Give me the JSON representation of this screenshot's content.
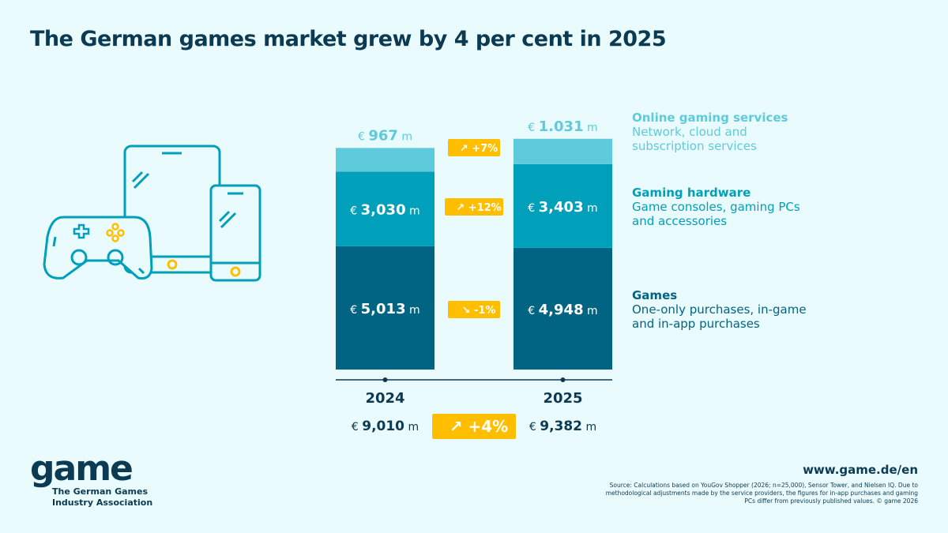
{
  "title": "The German games market grew by 4 per cent in 2025",
  "chart_data": {
    "type": "bar",
    "stacked": true,
    "categories": [
      "2024",
      "2025"
    ],
    "currency_prefix": "€",
    "unit": "m",
    "series": [
      {
        "name": "Games",
        "values": [
          5013,
          4948
        ],
        "labels": [
          "5,013",
          "4,948"
        ],
        "change": "-1%",
        "direction": "down",
        "color": "#006482"
      },
      {
        "name": "Gaming hardware",
        "values": [
          3030,
          3403
        ],
        "labels": [
          "3,030",
          "3,403"
        ],
        "change": "+12%",
        "direction": "up",
        "color": "#009fba"
      },
      {
        "name": "Online gaming services",
        "values": [
          967,
          1031
        ],
        "labels": [
          "967",
          "1.031"
        ],
        "change": "+7%",
        "direction": "up",
        "color": "#5ecbdc"
      }
    ],
    "totals": [
      "9,010",
      "9,382"
    ],
    "total_change": "+4%",
    "badge_color": "#ffbf00"
  },
  "legend": [
    {
      "title": "Online gaming services",
      "desc": [
        "Network, cloud and",
        "subscription services"
      ],
      "color": "#5ecbdc"
    },
    {
      "title": "Gaming hardware",
      "desc": [
        "Game consoles, gaming PCs",
        "and accessories"
      ],
      "color": "#009fba"
    },
    {
      "title": "Games",
      "desc": [
        "One-only purchases, in-game",
        "and in-app purchases"
      ],
      "color": "#006482"
    }
  ],
  "logo": {
    "word": "game",
    "sub": [
      "The German Games",
      "Industry Association"
    ]
  },
  "url": "www.game.de/en",
  "source": "Source: Calculations based on YouGov Shopper (2026; n=25,000), Sensor Tower, and Nielsen IQ. Due to methodological adjustments made by the service providers, the figures for in-app purchases and gaming PCs differ from previously published values.  © game 2026",
  "icons": [
    "gamepad-icon",
    "tablet-icon",
    "smartphone-icon"
  ]
}
